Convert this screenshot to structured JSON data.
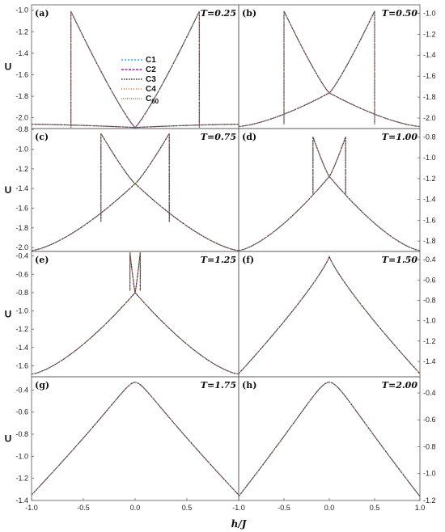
{
  "chart_data": [
    {
      "type": "line",
      "panel": "(a)",
      "T": "T=0.25",
      "xlim": [
        -1,
        1
      ],
      "ylim": [
        -2.1,
        -0.95
      ],
      "yticks": [
        -1.0,
        -1.2,
        -1.4,
        -1.6,
        -1.8,
        -2.0
      ],
      "ytick_labels": [
        "-1.0",
        "-1.2",
        "-1.4",
        "-1.6",
        "-1.8",
        "-2.0"
      ],
      "yaxis": "left",
      "ylabel": "U",
      "series": [
        {
          "name": "C1"
        },
        {
          "name": "C2"
        },
        {
          "name": "C3"
        },
        {
          "name": "C4"
        },
        {
          "name": "C",
          "sub": "60"
        }
      ],
      "curve": {
        "shape": "transition",
        "base": -2.06,
        "center": -2.09,
        "peak": -1.01,
        "jump": -2.09,
        "xt": 0.62
      }
    },
    {
      "type": "line",
      "panel": "(b)",
      "T": "T=0.50",
      "xlim": [
        -1,
        1
      ],
      "ylim": [
        -2.1,
        -0.92
      ],
      "yticks": [
        -1.0,
        -1.2,
        -1.4,
        -1.6,
        -1.8,
        -2.0
      ],
      "ytick_labels": [
        "-1.0",
        "-1.2",
        "-1.4",
        "-1.6",
        "-1.8",
        "-2.0"
      ],
      "yaxis": "right",
      "curve": {
        "shape": "transition",
        "base": -2.08,
        "center": -1.76,
        "peak": -0.98,
        "jump": -2.06,
        "xt": 0.5
      }
    },
    {
      "type": "line",
      "panel": "(c)",
      "T": "T=0.75",
      "xlim": [
        -1,
        1
      ],
      "ylim": [
        -2.04,
        -0.79
      ],
      "yticks": [
        -0.8,
        -1.0,
        -1.2,
        -1.4,
        -1.6,
        -1.8,
        -2.0
      ],
      "ytick_labels": [
        "-0.8",
        "-1.0",
        "-1.2",
        "-1.4",
        "-1.6",
        "-1.8",
        "-2.0"
      ],
      "yaxis": "left",
      "ylabel": "U",
      "curve": {
        "shape": "transition",
        "base": -2.03,
        "center": -1.35,
        "peak": -0.84,
        "jump": -1.74,
        "xt": 0.33
      }
    },
    {
      "type": "line",
      "panel": "(d)",
      "T": "T=1.00",
      "xlim": [
        -1,
        1
      ],
      "ylim": [
        -1.9,
        -0.72
      ],
      "yticks": [
        -0.8,
        -1.0,
        -1.2,
        -1.4,
        -1.6,
        -1.8
      ],
      "ytick_labels": [
        "-0.8",
        "-1.0",
        "-1.2",
        "-1.4",
        "-1.6",
        "-1.8"
      ],
      "yaxis": "right",
      "curve": {
        "shape": "transition",
        "base": -1.89,
        "center": -1.18,
        "peak": -0.8,
        "jump": -1.35,
        "xt": 0.18
      }
    },
    {
      "type": "line",
      "panel": "(e)",
      "T": "T=1.25",
      "xlim": [
        -1,
        1
      ],
      "ylim": [
        -1.72,
        -0.35
      ],
      "yticks": [
        -0.4,
        -0.6,
        -0.8,
        -1.0,
        -1.2,
        -1.4,
        -1.6
      ],
      "ytick_labels": [
        "-0.4",
        "-0.6",
        "-0.8",
        "-1.0",
        "-1.2",
        "-1.4",
        "-1.6"
      ],
      "yaxis": "left",
      "ylabel": "U",
      "curve": {
        "shape": "transition",
        "base": -1.69,
        "center": -0.8,
        "peak": -0.36,
        "jump": -0.78,
        "xt": 0.05
      }
    },
    {
      "type": "line",
      "panel": "(f)",
      "T": "T=1.50",
      "xlim": [
        -1,
        1
      ],
      "ylim": [
        -1.55,
        -0.32
      ],
      "yticks": [
        -0.4,
        -0.6,
        -0.8,
        -1.0,
        -1.2,
        -1.4
      ],
      "ytick_labels": [
        "-0.4",
        "-0.6",
        "-0.8",
        "-1.0",
        "-1.2",
        "-1.4"
      ],
      "yaxis": "right",
      "curve": {
        "shape": "cusp",
        "base": -1.52,
        "peak": -0.37
      }
    },
    {
      "type": "line",
      "panel": "(g)",
      "T": "T=1.75",
      "xlim": [
        -1,
        1
      ],
      "ylim": [
        -1.4,
        -0.28
      ],
      "yticks": [
        -0.4,
        -0.6,
        -0.8,
        -1.0,
        -1.2,
        -1.4
      ],
      "ytick_labels": [
        "-0.4",
        "-0.6",
        "-0.8",
        "-1.0",
        "-1.2",
        "-1.4"
      ],
      "yaxis": "left",
      "ylabel": "U",
      "xticks": [
        -1.0,
        -0.5,
        0.0,
        0.5,
        1.0
      ],
      "xtick_labels": [
        "-1.0",
        "-0.5",
        "0.0",
        "0.5",
        ""
      ],
      "curve": {
        "shape": "smooth",
        "base": -1.35,
        "peak": -0.33,
        "w": 0.09
      }
    },
    {
      "type": "line",
      "panel": "(h)",
      "T": "T=2.00",
      "xlim": [
        -1,
        1
      ],
      "ylim": [
        -1.2,
        -0.28
      ],
      "yticks": [
        -0.4,
        -0.6,
        -0.8,
        -1.0,
        -1.2
      ],
      "ytick_labels": [
        "-0.4",
        "-0.6",
        "-0.8",
        "-1.0",
        "-1.2"
      ],
      "yaxis": "right",
      "xticks": [
        -1.0,
        -0.5,
        0.0,
        0.5,
        1.0
      ],
      "xtick_labels": [
        "-1.0",
        "-0.5",
        "0.0",
        "0.5",
        "1.0"
      ],
      "curve": {
        "shape": "smooth",
        "base": -1.17,
        "peak": -0.32,
        "w": 0.14
      }
    }
  ],
  "xlabel": "h/J",
  "series_colors": {
    "C1": "#1fb8d8",
    "C2": "#a020a0",
    "C3": "#333333",
    "C4": "#e8702a",
    "C60": "#556b2f"
  }
}
